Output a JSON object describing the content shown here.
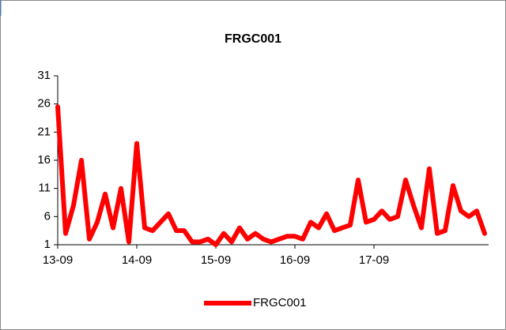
{
  "chart_data": {
    "type": "line",
    "title": "FRGC001",
    "categories": [
      "13-09",
      null,
      null,
      null,
      null,
      null,
      null,
      null,
      null,
      null,
      "14-09",
      null,
      null,
      null,
      null,
      null,
      null,
      null,
      null,
      null,
      "15-09",
      null,
      null,
      null,
      null,
      null,
      null,
      null,
      null,
      null,
      "16-09",
      null,
      null,
      null,
      null,
      null,
      null,
      null,
      null,
      null,
      "17-09",
      null,
      null,
      null,
      null,
      null,
      null,
      null,
      null,
      null,
      null,
      null,
      null,
      null,
      null
    ],
    "series": [
      {
        "name": "FRGC001",
        "color": "#ff0000",
        "values": [
          25.5,
          3,
          8,
          16,
          2,
          5,
          10,
          4,
          11,
          1.5,
          19,
          4,
          3.5,
          5,
          6.5,
          3.5,
          3.5,
          1.5,
          1.5,
          2,
          1,
          3,
          1.5,
          4,
          2,
          3,
          2,
          1.5,
          2,
          2.5,
          2.5,
          2,
          5,
          4,
          6.5,
          3.5,
          4,
          4.5,
          12.5,
          5,
          5.5,
          7,
          5.5,
          6,
          12.5,
          8,
          4,
          14.5,
          3,
          3.5,
          11.5,
          7,
          6,
          7,
          3
        ]
      }
    ],
    "ylim": [
      1,
      31
    ],
    "yticks": [
      1,
      6,
      11,
      16,
      21,
      26,
      31
    ],
    "legend": "bottom"
  }
}
